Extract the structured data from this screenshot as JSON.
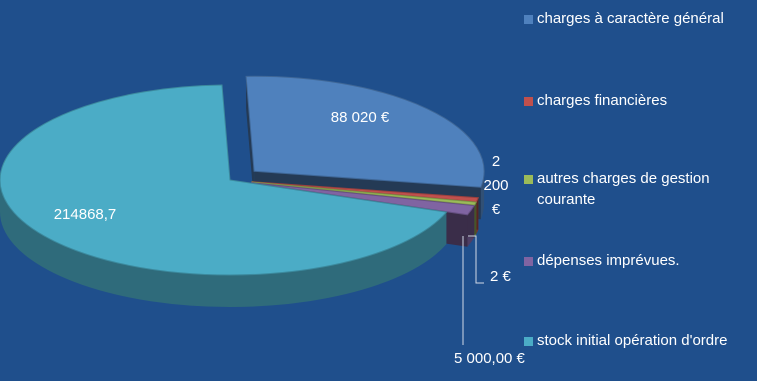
{
  "chart_data": {
    "type": "pie",
    "categories": [
      "charges à caractère général",
      "charges financières",
      "autres charges de gestion courante",
      "dépenses imprévues.",
      "stock initial opération d'ordre"
    ],
    "values": [
      88020,
      2200,
      2,
      5000,
      214868.7
    ],
    "data_labels": [
      "88 020 €",
      "2 200 €",
      "2 €",
      "5 000,00 €",
      "214868,7"
    ],
    "colors": [
      "#4f81bd",
      "#c0504d",
      "#9bbb59",
      "#8064a2",
      "#4bacc6"
    ],
    "legend_position": "right",
    "three_d": true
  }
}
